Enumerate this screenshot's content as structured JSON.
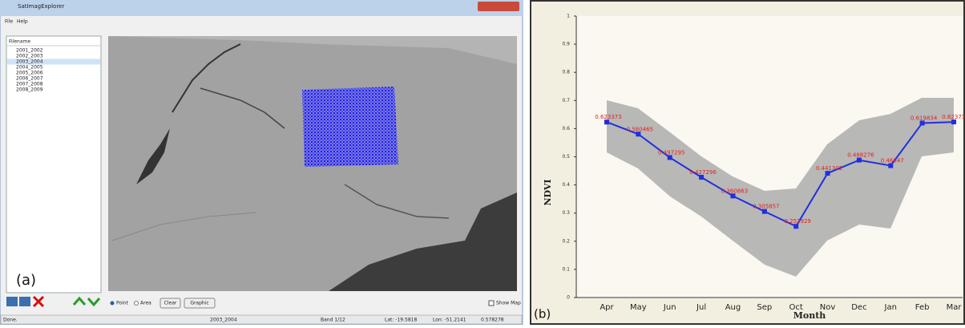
{
  "app": {
    "window_title": "SatImagExplorer",
    "menu": [
      "File",
      "Help"
    ],
    "file_list": {
      "header": "Filename",
      "items": [
        "2001_2002",
        "2002_2003",
        "2003_2004",
        "2004_2005",
        "2005_2006",
        "2006_2007",
        "2007_2008",
        "2008_2009"
      ]
    },
    "controls": {
      "point": "Point",
      "area": "Area",
      "clear": "Clear",
      "graphic": "Graphic",
      "show_map": "Show Map"
    },
    "status": [
      "Done.",
      "2003_2004",
      "Band 1/12",
      "Lat: -19.5818",
      "Lon: -51.2141",
      "0.578278"
    ],
    "panel_label": "(a)"
  },
  "chart_data": {
    "type": "line",
    "panel_label": "(b)",
    "x_label": "Month",
    "y_label": "NDVI",
    "categories": [
      "Apr",
      "May",
      "Jun",
      "Jul",
      "Aug",
      "Sep",
      "Oct",
      "Nov",
      "Dec",
      "Jan",
      "Feb",
      "Mar"
    ],
    "values": [
      0.623373,
      0.580465,
      0.497295,
      0.427296,
      0.360863,
      0.305857,
      0.252929,
      0.441302,
      0.488276,
      0.46847,
      0.619834,
      0.623719
    ],
    "color": "#1f2fe0",
    "label_color": "#e02020",
    "ylim": [
      0,
      1
    ],
    "yticks": [
      0,
      0.1,
      0.2,
      0.3,
      0.4,
      0.5,
      0.6,
      0.7,
      0.8,
      0.9,
      1
    ]
  }
}
